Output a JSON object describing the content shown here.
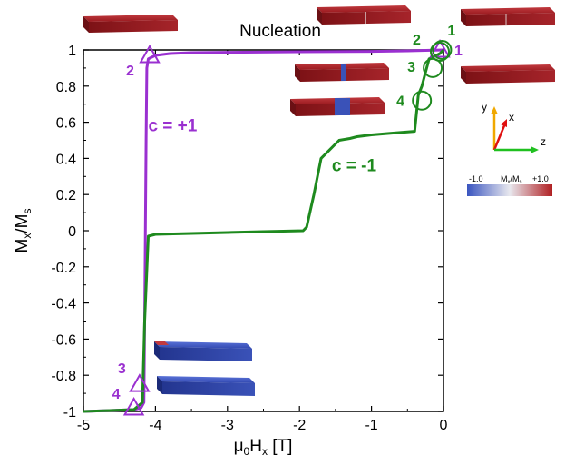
{
  "chart_data": {
    "type": "line",
    "title": "Nucleation",
    "xlabel": "μ0Hx [T]",
    "ylabel": "Mx/Ms",
    "xlim": [
      -5,
      0
    ],
    "ylim": [
      -1,
      1
    ],
    "x_ticks": [
      "-5",
      "-4",
      "-3",
      "-2",
      "-1",
      "0"
    ],
    "y_ticks": [
      "1",
      "0.8",
      "0.6",
      "0.4",
      "0.2",
      "0",
      "-0.2",
      "-0.4",
      "-0.6",
      "-0.8",
      "-1"
    ],
    "grid": false,
    "series": [
      {
        "name": "c = +1",
        "color": "#9a30d0",
        "points": [
          [
            0,
            1
          ],
          [
            -0.5,
            0.995
          ],
          [
            -1,
            0.992
          ],
          [
            -2,
            0.99
          ],
          [
            -3,
            0.987
          ],
          [
            -3.5,
            0.985
          ],
          [
            -3.8,
            0.98
          ],
          [
            -4,
            0.97
          ],
          [
            -4.1,
            0.95
          ],
          [
            -4.12,
            0.9
          ],
          [
            -4.13,
            0.5
          ],
          [
            -4.14,
            0
          ],
          [
            -4.15,
            -0.5
          ],
          [
            -4.16,
            -0.95
          ],
          [
            -4.2,
            -0.98
          ],
          [
            -4.3,
            -0.99
          ],
          [
            -5,
            -1
          ]
        ]
      },
      {
        "name": "c = -1",
        "color": "#1e8a1e",
        "points": [
          [
            0,
            1
          ],
          [
            -0.05,
            0.98
          ],
          [
            -0.1,
            0.97
          ],
          [
            -0.2,
            0.95
          ],
          [
            -0.3,
            0.8
          ],
          [
            -0.35,
            0.75
          ],
          [
            -0.4,
            0.55
          ],
          [
            -0.7,
            0.54
          ],
          [
            -1,
            0.53
          ],
          [
            -1.2,
            0.52
          ],
          [
            -1.3,
            0.51
          ],
          [
            -1.45,
            0.5
          ],
          [
            -1.5,
            0.48
          ],
          [
            -1.7,
            0.4
          ],
          [
            -1.8,
            0.2
          ],
          [
            -1.9,
            0.02
          ],
          [
            -1.95,
            0
          ],
          [
            -2.5,
            -0.005
          ],
          [
            -3,
            -0.01
          ],
          [
            -3.5,
            -0.015
          ],
          [
            -4,
            -0.02
          ],
          [
            -4.1,
            -0.03
          ],
          [
            -4.15,
            -0.5
          ],
          [
            -4.18,
            -0.95
          ],
          [
            -4.3,
            -0.99
          ],
          [
            -5,
            -1
          ]
        ]
      }
    ],
    "markers": [
      {
        "series": "c = +1",
        "shape": "triangle",
        "label": "1",
        "x": -0.05,
        "y": 1.0
      },
      {
        "series": "c = +1",
        "shape": "triangle",
        "label": "2",
        "x": -4.08,
        "y": 0.97
      },
      {
        "series": "c = +1",
        "shape": "triangle",
        "label": "3",
        "x": -4.22,
        "y": -0.85
      },
      {
        "series": "c = +1",
        "shape": "triangle",
        "label": "4",
        "x": -4.3,
        "y": -0.98
      },
      {
        "series": "c = -1",
        "shape": "circle",
        "label": "1",
        "x": -0.02,
        "y": 1.0
      },
      {
        "series": "c = -1",
        "shape": "circle",
        "label": "2",
        "x": -0.05,
        "y": 0.99
      },
      {
        "series": "c = -1",
        "shape": "circle",
        "label": "3",
        "x": -0.15,
        "y": 0.9
      },
      {
        "series": "c = -1",
        "shape": "circle",
        "label": "4",
        "x": -0.3,
        "y": 0.72
      }
    ],
    "annotations": [
      {
        "text": "c = +1",
        "color": "#9a30d0",
        "x": -4.1,
        "y": 0.55
      },
      {
        "text": "c = -1",
        "color": "#1e8a1e",
        "x": -1.55,
        "y": 0.33
      }
    ]
  },
  "colorbar": {
    "label": "Mx/Ms",
    "min_label": "-1.0",
    "max_label": "+1.0",
    "low_color": "#3a55c0",
    "high_color": "#b01f22"
  },
  "axes_triad": {
    "y": "y",
    "x": "x",
    "z": "z"
  },
  "insets": {
    "bar_color": "#a0151b",
    "bar_blue": "#2a3fa0"
  }
}
